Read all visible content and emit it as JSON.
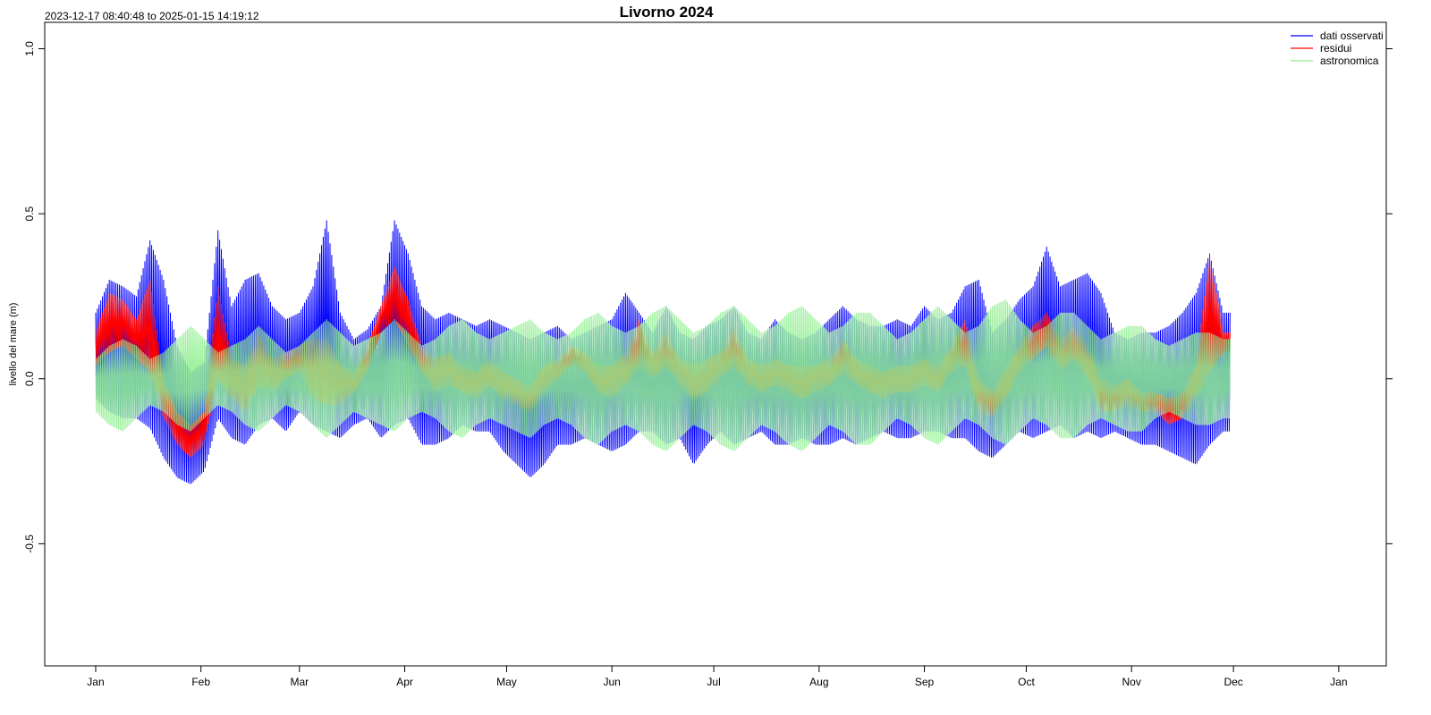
{
  "header": {
    "range_label": "2023-12-17 08:40:48 to 2025-01-15 14:19:12"
  },
  "chart_data": {
    "type": "line",
    "title": "Livorno 2024",
    "ylabel": "livello del mare (m)",
    "xlabel": "",
    "x_range": [
      "2023-12-17",
      "2025-01-15"
    ],
    "ylim": [
      -0.87,
      1.08
    ],
    "y_ticks": [
      -0.5,
      0.0,
      0.5,
      1.0
    ],
    "y_tick_labels": [
      "-0.5",
      "0.0",
      "0.5",
      "1.0"
    ],
    "x_ticks": [
      {
        "date": "2024-01-01",
        "label": "Jan"
      },
      {
        "date": "2024-02-01",
        "label": "Feb"
      },
      {
        "date": "2024-03-01",
        "label": "Mar"
      },
      {
        "date": "2024-04-01",
        "label": "Apr"
      },
      {
        "date": "2024-05-01",
        "label": "May"
      },
      {
        "date": "2024-06-01",
        "label": "Jun"
      },
      {
        "date": "2024-07-01",
        "label": "Jul"
      },
      {
        "date": "2024-08-01",
        "label": "Aug"
      },
      {
        "date": "2024-09-01",
        "label": "Sep"
      },
      {
        "date": "2024-10-01",
        "label": "Oct"
      },
      {
        "date": "2024-11-01",
        "label": "Nov"
      },
      {
        "date": "2024-12-01",
        "label": "Dec"
      },
      {
        "date": "2025-01-01",
        "label": "Jan"
      }
    ],
    "grid": false,
    "legend_position": "top-right",
    "series": [
      {
        "name": "dati osservati",
        "color": "#0000ff",
        "x": [
          "2024-01-01",
          "2024-01-05",
          "2024-01-09",
          "2024-01-13",
          "2024-01-17",
          "2024-01-21",
          "2024-01-25",
          "2024-01-29",
          "2024-02-02",
          "2024-02-06",
          "2024-02-10",
          "2024-02-14",
          "2024-02-18",
          "2024-02-22",
          "2024-02-26",
          "2024-03-01",
          "2024-03-05",
          "2024-03-09",
          "2024-03-13",
          "2024-03-17",
          "2024-03-21",
          "2024-03-25",
          "2024-03-29",
          "2024-04-02",
          "2024-04-06",
          "2024-04-10",
          "2024-04-14",
          "2024-04-18",
          "2024-04-22",
          "2024-04-26",
          "2024-04-30",
          "2024-05-04",
          "2024-05-08",
          "2024-05-12",
          "2024-05-16",
          "2024-05-20",
          "2024-05-24",
          "2024-05-28",
          "2024-06-01",
          "2024-06-05",
          "2024-06-09",
          "2024-06-13",
          "2024-06-17",
          "2024-06-21",
          "2024-06-25",
          "2024-06-29",
          "2024-07-03",
          "2024-07-07",
          "2024-07-11",
          "2024-07-15",
          "2024-07-19",
          "2024-07-23",
          "2024-07-27",
          "2024-07-31",
          "2024-08-04",
          "2024-08-08",
          "2024-08-12",
          "2024-08-16",
          "2024-08-20",
          "2024-08-24",
          "2024-08-28",
          "2024-09-01",
          "2024-09-05",
          "2024-09-09",
          "2024-09-13",
          "2024-09-17",
          "2024-09-21",
          "2024-09-25",
          "2024-09-29",
          "2024-10-03",
          "2024-10-07",
          "2024-10-11",
          "2024-10-15",
          "2024-10-19",
          "2024-10-23",
          "2024-10-27",
          "2024-10-31",
          "2024-11-04",
          "2024-11-08",
          "2024-11-12",
          "2024-11-16",
          "2024-11-20",
          "2024-11-24",
          "2024-11-28"
        ],
        "min": [
          -0.06,
          -0.1,
          -0.12,
          -0.12,
          -0.15,
          -0.24,
          -0.3,
          -0.32,
          -0.28,
          -0.12,
          -0.18,
          -0.2,
          -0.14,
          -0.12,
          -0.16,
          -0.1,
          -0.14,
          -0.16,
          -0.18,
          -0.14,
          -0.12,
          -0.18,
          -0.14,
          -0.12,
          -0.2,
          -0.2,
          -0.18,
          -0.14,
          -0.16,
          -0.16,
          -0.22,
          -0.26,
          -0.3,
          -0.26,
          -0.2,
          -0.2,
          -0.18,
          -0.2,
          -0.22,
          -0.2,
          -0.16,
          -0.16,
          -0.2,
          -0.18,
          -0.26,
          -0.2,
          -0.16,
          -0.2,
          -0.18,
          -0.16,
          -0.2,
          -0.2,
          -0.18,
          -0.2,
          -0.2,
          -0.18,
          -0.2,
          -0.18,
          -0.16,
          -0.18,
          -0.18,
          -0.16,
          -0.16,
          -0.18,
          -0.18,
          -0.22,
          -0.24,
          -0.2,
          -0.16,
          -0.18,
          -0.16,
          -0.14,
          -0.18,
          -0.16,
          -0.18,
          -0.16,
          -0.18,
          -0.2,
          -0.2,
          -0.22,
          -0.24,
          -0.26,
          -0.2,
          -0.16
        ],
        "max": [
          0.2,
          0.3,
          0.28,
          0.25,
          0.42,
          0.3,
          0.1,
          0.02,
          0.05,
          0.45,
          0.22,
          0.3,
          0.32,
          0.22,
          0.18,
          0.2,
          0.28,
          0.48,
          0.2,
          0.12,
          0.15,
          0.22,
          0.48,
          0.38,
          0.22,
          0.18,
          0.2,
          0.18,
          0.16,
          0.18,
          0.16,
          0.14,
          0.12,
          0.14,
          0.16,
          0.12,
          0.14,
          0.16,
          0.18,
          0.26,
          0.2,
          0.14,
          0.22,
          0.14,
          0.12,
          0.16,
          0.18,
          0.22,
          0.14,
          0.12,
          0.18,
          0.14,
          0.12,
          0.14,
          0.18,
          0.22,
          0.18,
          0.16,
          0.16,
          0.18,
          0.16,
          0.22,
          0.18,
          0.2,
          0.28,
          0.3,
          0.14,
          0.18,
          0.24,
          0.28,
          0.4,
          0.28,
          0.3,
          0.32,
          0.26,
          0.14,
          0.12,
          0.14,
          0.14,
          0.16,
          0.2,
          0.26,
          0.38,
          0.2
        ]
      },
      {
        "name": "residui",
        "color": "#ff0000",
        "x": [
          "2024-01-01",
          "2024-01-05",
          "2024-01-09",
          "2024-01-13",
          "2024-01-17",
          "2024-01-21",
          "2024-01-25",
          "2024-01-29",
          "2024-02-02",
          "2024-02-06",
          "2024-02-10",
          "2024-02-14",
          "2024-02-18",
          "2024-02-22",
          "2024-02-26",
          "2024-03-01",
          "2024-03-05",
          "2024-03-09",
          "2024-03-13",
          "2024-03-17",
          "2024-03-21",
          "2024-03-25",
          "2024-03-29",
          "2024-04-02",
          "2024-04-06",
          "2024-04-10",
          "2024-04-14",
          "2024-04-18",
          "2024-04-22",
          "2024-04-26",
          "2024-04-30",
          "2024-05-04",
          "2024-05-08",
          "2024-05-12",
          "2024-05-16",
          "2024-05-20",
          "2024-05-24",
          "2024-05-28",
          "2024-06-01",
          "2024-06-05",
          "2024-06-09",
          "2024-06-13",
          "2024-06-17",
          "2024-06-21",
          "2024-06-25",
          "2024-06-29",
          "2024-07-03",
          "2024-07-07",
          "2024-07-11",
          "2024-07-15",
          "2024-07-19",
          "2024-07-23",
          "2024-07-27",
          "2024-07-31",
          "2024-08-04",
          "2024-08-08",
          "2024-08-12",
          "2024-08-16",
          "2024-08-20",
          "2024-08-24",
          "2024-08-28",
          "2024-09-01",
          "2024-09-05",
          "2024-09-09",
          "2024-09-13",
          "2024-09-17",
          "2024-09-21",
          "2024-09-25",
          "2024-09-29",
          "2024-10-03",
          "2024-10-07",
          "2024-10-11",
          "2024-10-15",
          "2024-10-19",
          "2024-10-23",
          "2024-10-27",
          "2024-10-31",
          "2024-11-04",
          "2024-11-08",
          "2024-11-12",
          "2024-11-16",
          "2024-11-20",
          "2024-11-24",
          "2024-11-28"
        ],
        "min": [
          0.04,
          0.08,
          0.1,
          0.06,
          0.02,
          -0.12,
          -0.2,
          -0.24,
          -0.2,
          0.0,
          -0.06,
          -0.1,
          -0.02,
          -0.04,
          0.0,
          0.02,
          -0.06,
          -0.08,
          -0.08,
          -0.04,
          0.02,
          0.14,
          0.18,
          0.1,
          0.02,
          -0.04,
          -0.02,
          -0.04,
          -0.06,
          -0.02,
          -0.06,
          -0.08,
          -0.1,
          -0.04,
          0.0,
          0.04,
          0.02,
          -0.04,
          -0.06,
          -0.02,
          0.04,
          0.0,
          0.04,
          -0.02,
          -0.06,
          -0.04,
          0.0,
          0.04,
          -0.02,
          -0.04,
          -0.02,
          -0.04,
          -0.06,
          -0.04,
          -0.02,
          0.02,
          -0.02,
          -0.04,
          -0.06,
          -0.04,
          -0.04,
          -0.02,
          -0.04,
          0.02,
          0.04,
          -0.1,
          -0.12,
          -0.06,
          0.02,
          0.06,
          0.1,
          0.02,
          0.06,
          0.0,
          -0.1,
          -0.1,
          -0.08,
          -0.1,
          -0.1,
          -0.14,
          -0.12,
          -0.06,
          0.02,
          0.08
        ],
        "max": [
          0.14,
          0.26,
          0.24,
          0.18,
          0.3,
          0.0,
          -0.1,
          -0.14,
          -0.1,
          0.28,
          0.06,
          0.04,
          0.14,
          0.06,
          0.08,
          0.1,
          0.12,
          0.12,
          0.04,
          0.02,
          0.1,
          0.22,
          0.34,
          0.24,
          0.1,
          0.06,
          0.08,
          0.04,
          0.02,
          0.06,
          0.02,
          0.0,
          -0.02,
          0.04,
          0.06,
          0.1,
          0.08,
          0.04,
          0.04,
          0.08,
          0.18,
          0.08,
          0.14,
          0.06,
          0.04,
          0.06,
          0.08,
          0.16,
          0.06,
          0.04,
          0.06,
          0.04,
          0.04,
          0.04,
          0.06,
          0.12,
          0.06,
          0.04,
          0.02,
          0.04,
          0.04,
          0.06,
          0.04,
          0.1,
          0.18,
          0.0,
          -0.04,
          0.04,
          0.1,
          0.16,
          0.2,
          0.12,
          0.16,
          0.1,
          0.0,
          -0.02,
          0.0,
          -0.04,
          -0.04,
          -0.06,
          -0.04,
          0.04,
          0.38,
          0.14
        ]
      },
      {
        "name": "astronomica",
        "color": "#90ee90",
        "x": [
          "2024-01-01",
          "2024-01-05",
          "2024-01-09",
          "2024-01-13",
          "2024-01-17",
          "2024-01-21",
          "2024-01-25",
          "2024-01-29",
          "2024-02-02",
          "2024-02-06",
          "2024-02-10",
          "2024-02-14",
          "2024-02-18",
          "2024-02-22",
          "2024-02-26",
          "2024-03-01",
          "2024-03-05",
          "2024-03-09",
          "2024-03-13",
          "2024-03-17",
          "2024-03-21",
          "2024-03-25",
          "2024-03-29",
          "2024-04-02",
          "2024-04-06",
          "2024-04-10",
          "2024-04-14",
          "2024-04-18",
          "2024-04-22",
          "2024-04-26",
          "2024-04-30",
          "2024-05-04",
          "2024-05-08",
          "2024-05-12",
          "2024-05-16",
          "2024-05-20",
          "2024-05-24",
          "2024-05-28",
          "2024-06-01",
          "2024-06-05",
          "2024-06-09",
          "2024-06-13",
          "2024-06-17",
          "2024-06-21",
          "2024-06-25",
          "2024-06-29",
          "2024-07-03",
          "2024-07-07",
          "2024-07-11",
          "2024-07-15",
          "2024-07-19",
          "2024-07-23",
          "2024-07-27",
          "2024-07-31",
          "2024-08-04",
          "2024-08-08",
          "2024-08-12",
          "2024-08-16",
          "2024-08-20",
          "2024-08-24",
          "2024-08-28",
          "2024-09-01",
          "2024-09-05",
          "2024-09-09",
          "2024-09-13",
          "2024-09-17",
          "2024-09-21",
          "2024-09-25",
          "2024-09-29",
          "2024-10-03",
          "2024-10-07",
          "2024-10-11",
          "2024-10-15",
          "2024-10-19",
          "2024-10-23",
          "2024-10-27",
          "2024-10-31",
          "2024-11-04",
          "2024-11-08",
          "2024-11-12",
          "2024-11-16",
          "2024-11-20",
          "2024-11-24",
          "2024-11-28"
        ],
        "min": [
          -0.1,
          -0.14,
          -0.16,
          -0.12,
          -0.08,
          -0.1,
          -0.14,
          -0.16,
          -0.12,
          -0.08,
          -0.1,
          -0.14,
          -0.16,
          -0.12,
          -0.08,
          -0.1,
          -0.14,
          -0.18,
          -0.14,
          -0.1,
          -0.12,
          -0.14,
          -0.16,
          -0.12,
          -0.1,
          -0.12,
          -0.16,
          -0.18,
          -0.14,
          -0.12,
          -0.14,
          -0.16,
          -0.18,
          -0.14,
          -0.12,
          -0.14,
          -0.18,
          -0.2,
          -0.16,
          -0.14,
          -0.16,
          -0.2,
          -0.22,
          -0.18,
          -0.14,
          -0.16,
          -0.2,
          -0.22,
          -0.18,
          -0.14,
          -0.16,
          -0.2,
          -0.22,
          -0.18,
          -0.14,
          -0.16,
          -0.2,
          -0.2,
          -0.16,
          -0.12,
          -0.14,
          -0.18,
          -0.2,
          -0.16,
          -0.12,
          -0.14,
          -0.18,
          -0.2,
          -0.16,
          -0.12,
          -0.14,
          -0.18,
          -0.18,
          -0.14,
          -0.12,
          -0.14,
          -0.16,
          -0.16,
          -0.12,
          -0.1,
          -0.12,
          -0.14,
          -0.14,
          -0.12
        ],
        "max": [
          0.06,
          0.1,
          0.12,
          0.1,
          0.06,
          0.08,
          0.12,
          0.16,
          0.12,
          0.08,
          0.1,
          0.12,
          0.16,
          0.12,
          0.08,
          0.1,
          0.14,
          0.18,
          0.14,
          0.1,
          0.12,
          0.14,
          0.18,
          0.14,
          0.1,
          0.12,
          0.16,
          0.18,
          0.14,
          0.12,
          0.14,
          0.16,
          0.18,
          0.14,
          0.12,
          0.14,
          0.18,
          0.2,
          0.16,
          0.14,
          0.16,
          0.2,
          0.22,
          0.18,
          0.14,
          0.16,
          0.2,
          0.22,
          0.18,
          0.14,
          0.16,
          0.2,
          0.22,
          0.18,
          0.14,
          0.16,
          0.2,
          0.2,
          0.16,
          0.12,
          0.14,
          0.18,
          0.22,
          0.18,
          0.14,
          0.16,
          0.22,
          0.24,
          0.18,
          0.14,
          0.16,
          0.2,
          0.2,
          0.16,
          0.12,
          0.14,
          0.16,
          0.16,
          0.12,
          0.1,
          0.12,
          0.14,
          0.14,
          0.12
        ]
      }
    ]
  }
}
